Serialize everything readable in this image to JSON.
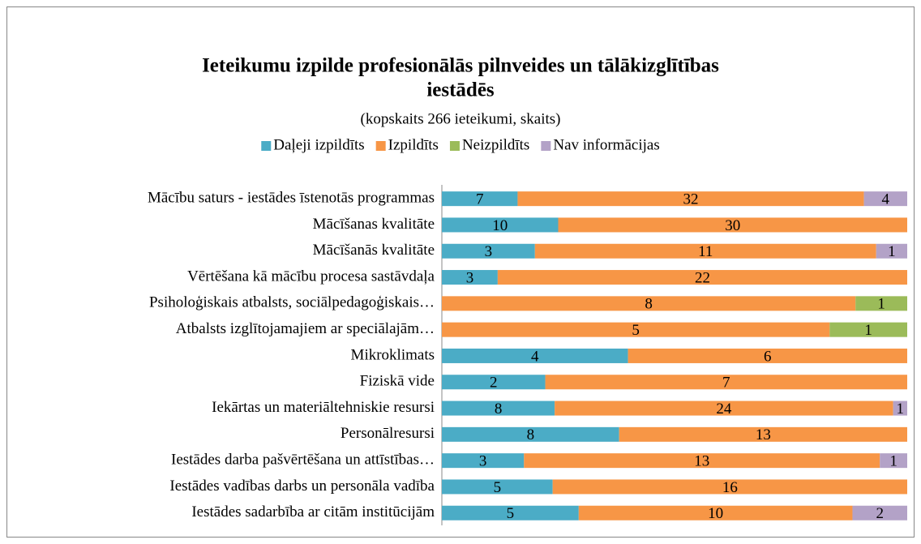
{
  "chart_data": {
    "type": "stacked-bar-100-horizontal",
    "title": [
      "Ieteikumu izpilde profesionālās pilnveides un tālākizglītības",
      "iestādēs"
    ],
    "subtitle": "(kopskaits 266 ieteikumi, skaits)",
    "categories": [
      "Mācību saturs - iestādes īstenotās programmas",
      "Mācīšanas kvalitāte",
      "Mācīšanās kvalitāte",
      "Vērtēšana kā mācību procesa sastāvdaļa",
      "Psiholoģiskais atbalsts, sociālpedagoģiskais…",
      "Atbalsts izglītojamajiem ar speciālajām…",
      "Mikroklimats",
      "Fiziskā vide",
      "Iekārtas un materiāltehniskie resursi",
      "Personālresursi",
      "Iestādes darba pašvērtēšana un attīstības…",
      "Iestādes vadības darbs un personāla vadība",
      "Iestādes sadarbība ar citām institūcijām"
    ],
    "series": [
      {
        "name": "Daļeji izpildīts",
        "color": "#4bacc6",
        "values": [
          7,
          10,
          3,
          3,
          null,
          null,
          4,
          2,
          8,
          8,
          3,
          5,
          5
        ]
      },
      {
        "name": "Izpildīts",
        "color": "#f79646",
        "values": [
          32,
          30,
          11,
          22,
          8,
          5,
          6,
          7,
          24,
          13,
          13,
          16,
          10
        ]
      },
      {
        "name": "Neizpildīts",
        "color": "#9bbb59",
        "values": [
          null,
          null,
          null,
          null,
          1,
          1,
          null,
          null,
          null,
          null,
          null,
          null,
          null
        ]
      },
      {
        "name": "Nav informācijas",
        "color": "#b3a2c7",
        "values": [
          4,
          null,
          1,
          null,
          null,
          null,
          null,
          null,
          1,
          null,
          1,
          null,
          2
        ]
      }
    ],
    "legend": "top"
  }
}
